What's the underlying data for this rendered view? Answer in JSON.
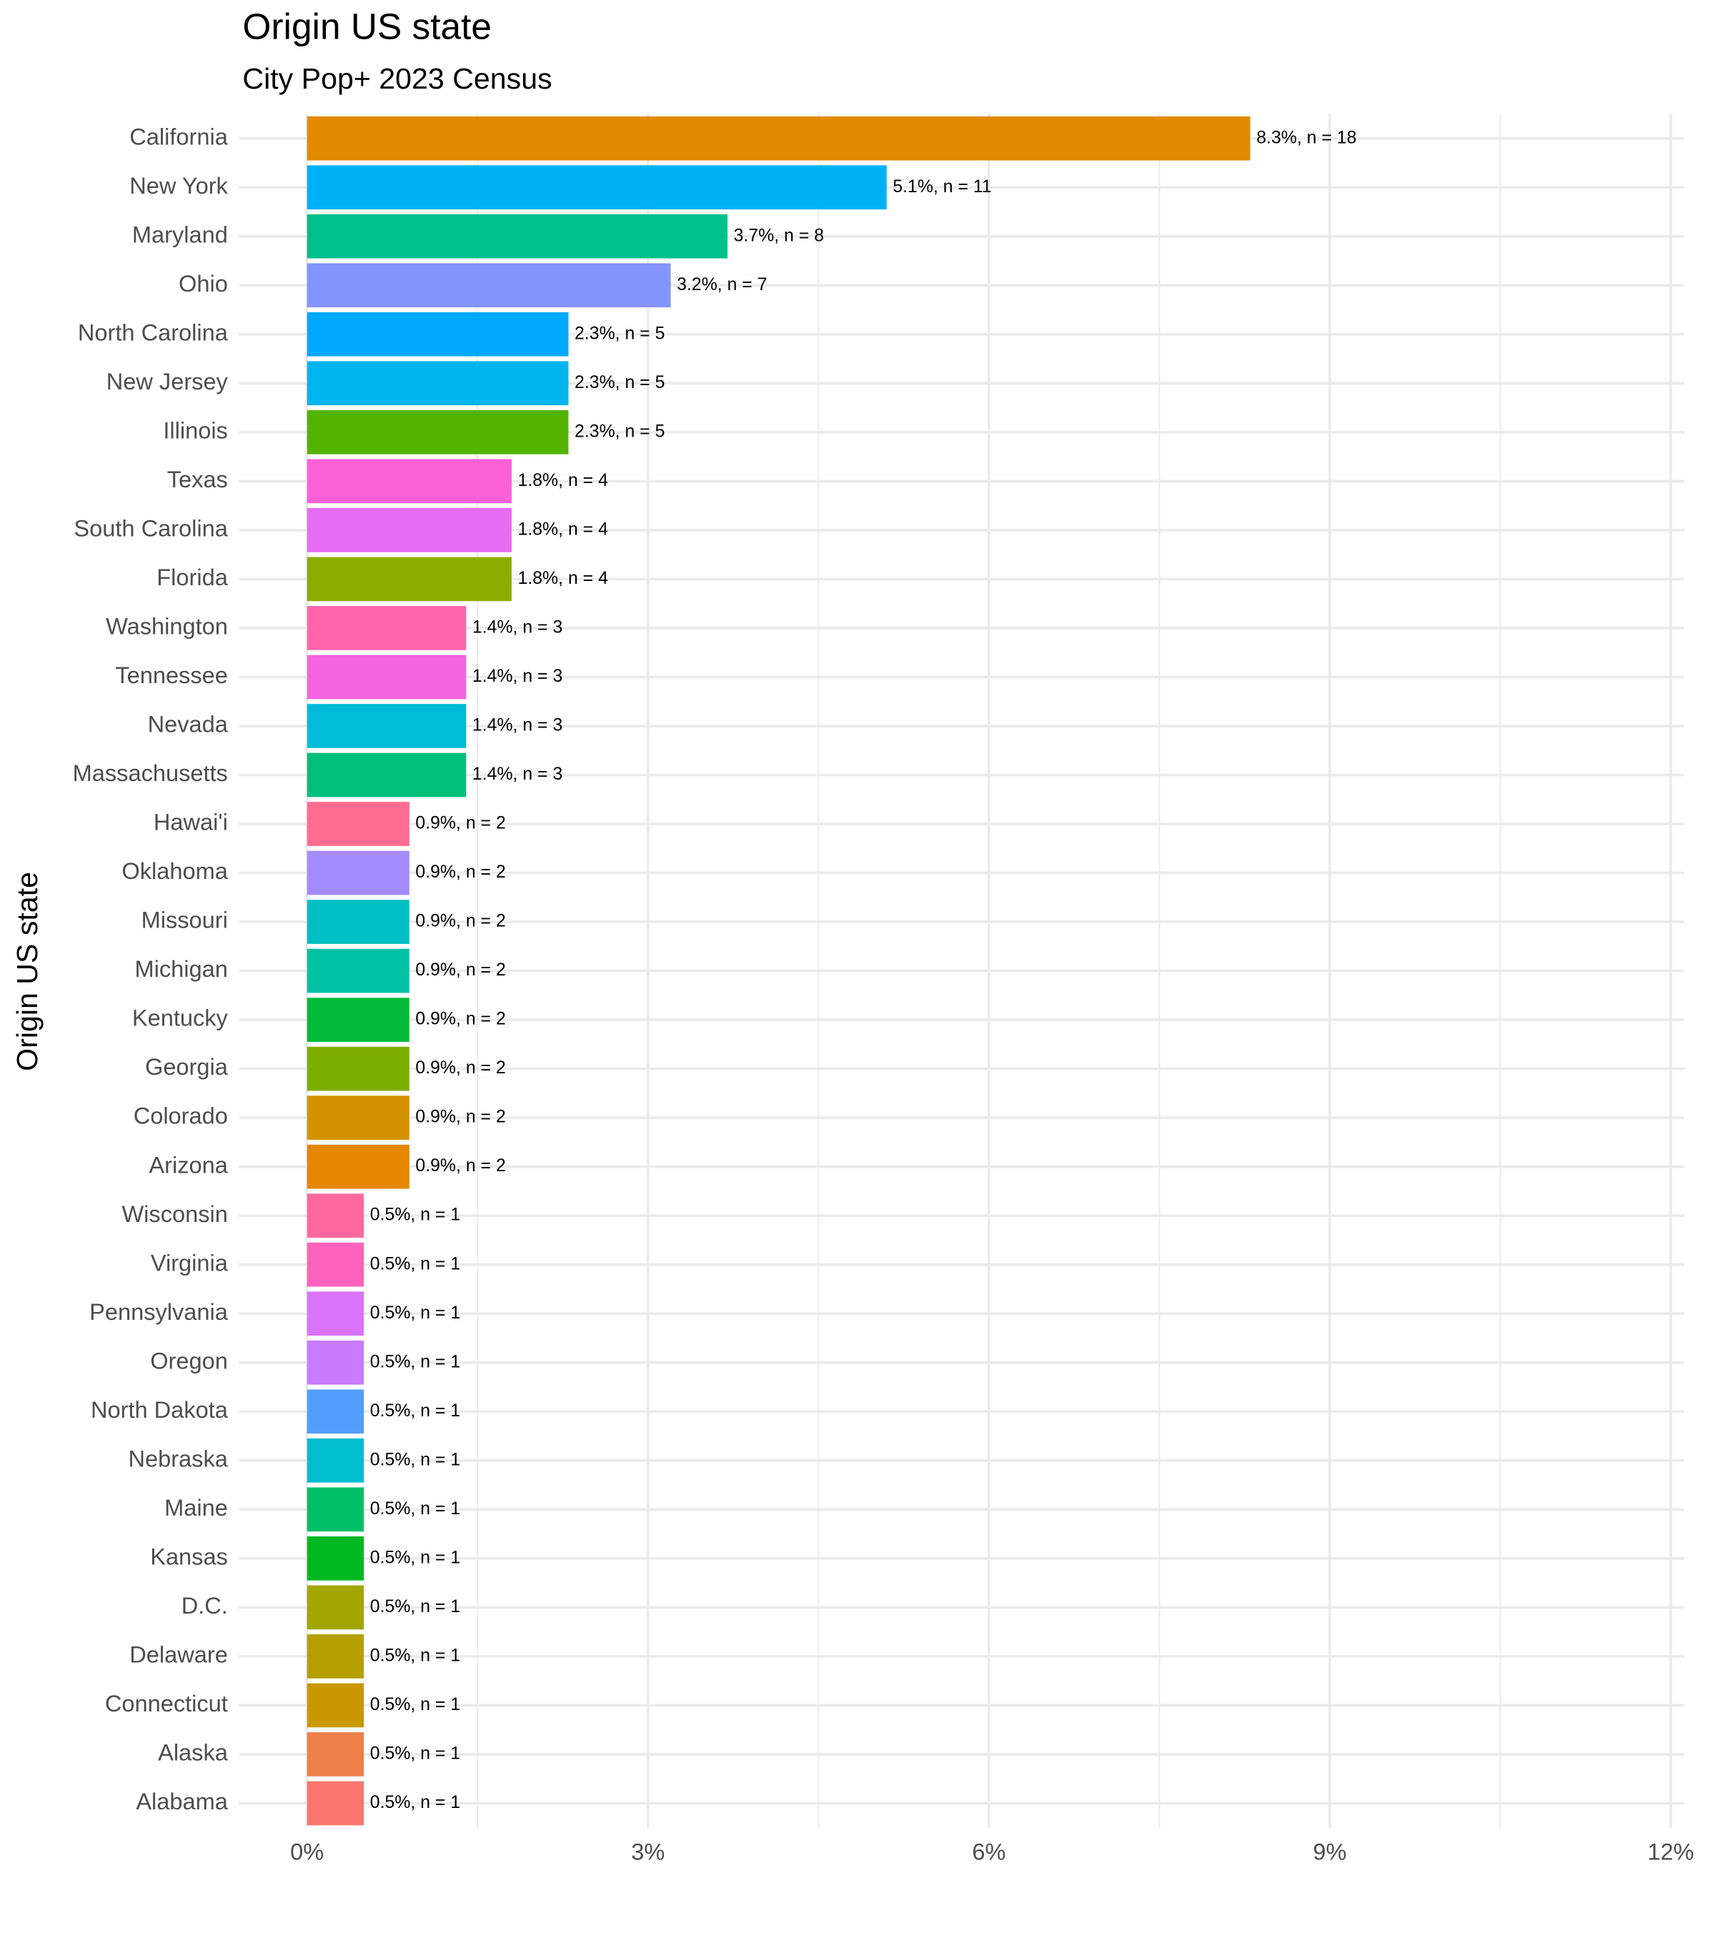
{
  "chart_data": {
    "type": "barh",
    "title": "Origin US state",
    "subtitle": "City Pop+ 2023 Census",
    "y_label": "Origin US state",
    "categories": [
      "California",
      "New York",
      "Maryland",
      "Ohio",
      "North Carolina",
      "New Jersey",
      "Illinois",
      "Texas",
      "South Carolina",
      "Florida",
      "Washington",
      "Tennessee",
      "Nevada",
      "Massachusetts",
      "Hawai'i",
      "Oklahoma",
      "Missouri",
      "Michigan",
      "Kentucky",
      "Georgia",
      "Colorado",
      "Arizona",
      "Wisconsin",
      "Virginia",
      "Pennsylvania",
      "Oregon",
      "North Dakota",
      "Nebraska",
      "Maine",
      "Kansas",
      "D.C.",
      "Delaware",
      "Connecticut",
      "Alaska",
      "Alabama"
    ],
    "values": [
      8.3,
      5.1,
      3.7,
      3.2,
      2.3,
      2.3,
      2.3,
      1.8,
      1.8,
      1.8,
      1.4,
      1.4,
      1.4,
      1.4,
      0.9,
      0.9,
      0.9,
      0.9,
      0.9,
      0.9,
      0.9,
      0.9,
      0.5,
      0.5,
      0.5,
      0.5,
      0.5,
      0.5,
      0.5,
      0.5,
      0.5,
      0.5,
      0.5,
      0.5,
      0.5
    ],
    "value_labels": [
      "8.3%, n = 18",
      "5.1%, n = 11",
      "3.7%, n = 8",
      "3.2%, n = 7",
      "2.3%, n = 5",
      "2.3%, n = 5",
      "2.3%, n = 5",
      "1.8%, n = 4",
      "1.8%, n = 4",
      "1.8%, n = 4",
      "1.4%, n = 3",
      "1.4%, n = 3",
      "1.4%, n = 3",
      "1.4%, n = 3",
      "0.9%, n = 2",
      "0.9%, n = 2",
      "0.9%, n = 2",
      "0.9%, n = 2",
      "0.9%, n = 2",
      "0.9%, n = 2",
      "0.9%, n = 2",
      "0.9%, n = 2",
      "0.5%, n = 1",
      "0.5%, n = 1",
      "0.5%, n = 1",
      "0.5%, n = 1",
      "0.5%, n = 1",
      "0.5%, n = 1",
      "0.5%, n = 1",
      "0.5%, n = 1",
      "0.5%, n = 1",
      "0.5%, n = 1",
      "0.5%, n = 1",
      "0.5%, n = 1",
      "0.5%, n = 1"
    ],
    "colors": [
      "#E08B00",
      "#00B0F6",
      "#00C08B",
      "#8494FF",
      "#00A9FF",
      "#00B4EF",
      "#53B400",
      "#FB61D7",
      "#E76BF3",
      "#8EAB00",
      "#FF65AC",
      "#F564E3",
      "#00BCD8",
      "#00BF7D",
      "#FF6C91",
      "#A58AFF",
      "#00BFC4",
      "#00C1A3",
      "#00BA38",
      "#7CAE00",
      "#D39200",
      "#E58700",
      "#FF689F",
      "#FF62BC",
      "#DB72FB",
      "#C77CFF",
      "#529EFF",
      "#00BDD0",
      "#00BE67",
      "#00B81F",
      "#A3A500",
      "#B79F00",
      "#C99800",
      "#EF7F49",
      "#F8766D"
    ],
    "xlim": [
      -0.6,
      12.12
    ],
    "xticks": [
      {
        "value": 0,
        "label": "0%"
      },
      {
        "value": 3,
        "label": "3%"
      },
      {
        "value": 6,
        "label": "6%"
      },
      {
        "value": 9,
        "label": "9%"
      },
      {
        "value": 12,
        "label": "12%"
      }
    ],
    "grid": true
  }
}
